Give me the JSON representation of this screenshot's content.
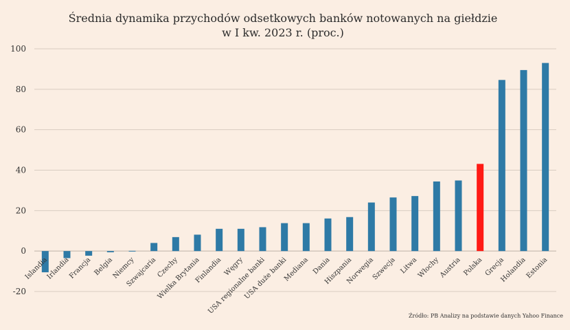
{
  "chart_data": {
    "type": "bar",
    "title": "Średnia dynamika przychodów odsetkowych banków notowanych na giełdzie",
    "subtitle": "w I kw. 2023 r. (proc.)",
    "xlabel": "",
    "ylabel": "",
    "ylim": [
      -20,
      100
    ],
    "yticks": [
      -20,
      0,
      20,
      40,
      60,
      80,
      100
    ],
    "grid": true,
    "legend": "none",
    "categories": [
      "Islandia",
      "Irlandia",
      "Francja",
      "Belgia",
      "Niemcy",
      "Szwajcaria",
      "Czechy",
      "Wielka Brytania",
      "Finlandia",
      "Węgry",
      "USA regionalne banki",
      "USA duże banki",
      "Mediana",
      "Dania",
      "Hiszpania",
      "Norwegia",
      "Szwecja",
      "Litwa",
      "Włochy",
      "Austria",
      "Polska",
      "Grecja",
      "Holandia",
      "Estonia"
    ],
    "values": [
      -10.5,
      -3.5,
      -2.3,
      -0.6,
      0.1,
      4.0,
      6.9,
      8.1,
      11.0,
      11.0,
      11.8,
      13.8,
      13.8,
      16.1,
      16.8,
      24.0,
      26.5,
      27.2,
      34.4,
      34.9,
      43.1,
      84.6,
      89.5,
      93.0
    ],
    "colors": {
      "default": "#2e7aa6",
      "highlight": "#ff1a14",
      "highlight_category": "Polska"
    },
    "source": "Źródło: PB Analizy na podstawie danych Yahoo Finance"
  }
}
